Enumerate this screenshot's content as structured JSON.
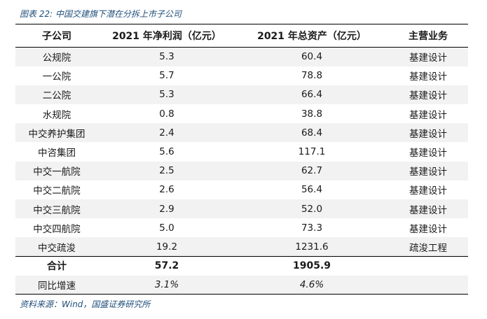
{
  "caption": "图表 22:  中国交建旗下潜在分拆上市子公司",
  "headers": [
    "子公司",
    "2021 年净利润（亿元）",
    "2021 年总资产（亿元）",
    "主营业务"
  ],
  "rows": [
    {
      "name": "公规院",
      "profit": "5.3",
      "assets": "60.4",
      "business": "基建设计"
    },
    {
      "name": "一公院",
      "profit": "5.7",
      "assets": "78.8",
      "business": "基建设计"
    },
    {
      "name": "二公院",
      "profit": "5.3",
      "assets": "66.4",
      "business": "基建设计"
    },
    {
      "name": "水规院",
      "profit": "0.8",
      "assets": "38.8",
      "business": "基建设计"
    },
    {
      "name": "中交养护集团",
      "profit": "2.4",
      "assets": "68.4",
      "business": "基建设计"
    },
    {
      "name": "中咨集团",
      "profit": "5.6",
      "assets": "117.1",
      "business": "基建设计"
    },
    {
      "name": "中交一航院",
      "profit": "2.5",
      "assets": "62.7",
      "business": "基建设计"
    },
    {
      "name": "中交二航院",
      "profit": "2.6",
      "assets": "56.4",
      "business": "基建设计"
    },
    {
      "name": "中交三航院",
      "profit": "2.9",
      "assets": "52.0",
      "business": "基建设计"
    },
    {
      "name": "中交四航院",
      "profit": "5.0",
      "assets": "73.3",
      "business": "基建设计"
    },
    {
      "name": "中交疏浚",
      "profit": "19.2",
      "assets": "1231.6",
      "business": "疏浚工程"
    }
  ],
  "total": {
    "label": "合计",
    "profit": "57.2",
    "assets": "1905.9"
  },
  "yoy": {
    "label": "同比增速",
    "profit": "3.1%",
    "assets": "4.6%"
  },
  "source": "资料来源：Wind，国盛证券研究所"
}
